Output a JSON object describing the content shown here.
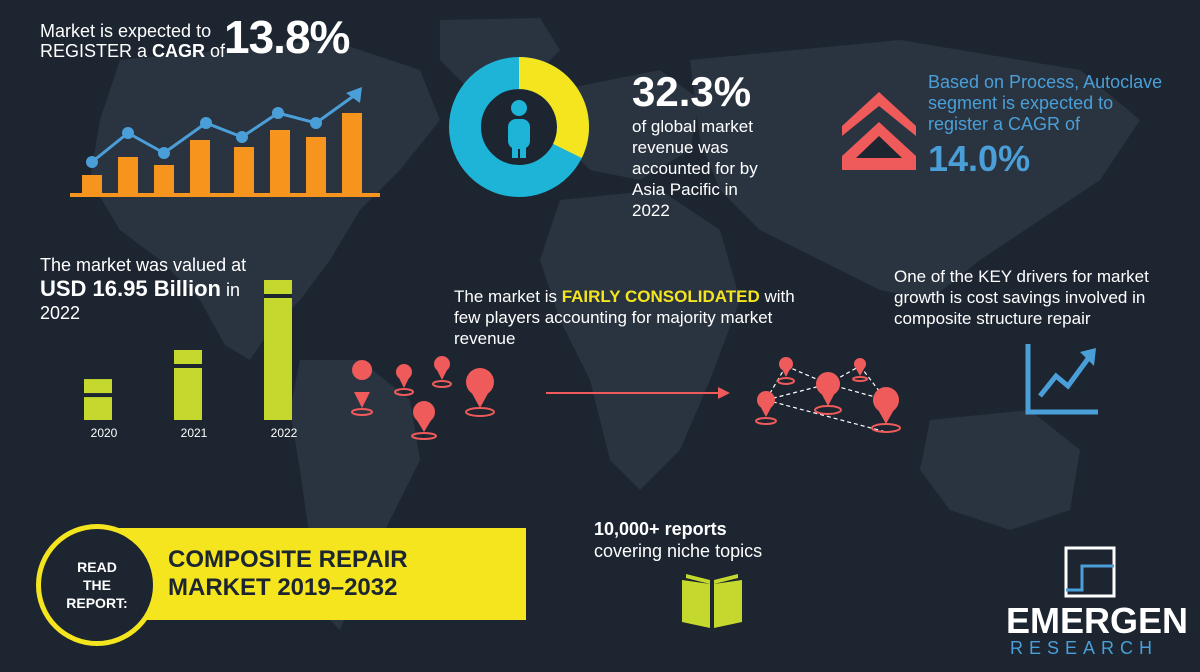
{
  "cagr": {
    "line1": "Market is expected to",
    "line2_prefix": "REGISTER a ",
    "line2_bold": "CAGR",
    "line2_suffix": " of",
    "value": "13.8%"
  },
  "share": {
    "value": "32.3%",
    "lines": [
      "of global market",
      "revenue was",
      "accounted for by",
      "Asia Pacific in",
      "2022"
    ],
    "fraction": 0.323
  },
  "process": {
    "lines": [
      "Based on Process, Autoclave",
      "segment is expected to",
      "register a CAGR of"
    ],
    "value": "14.0%"
  },
  "valuation": {
    "line1": "The market was valued at",
    "value_bold": "USD 16.95 Billion",
    "value_suffix": " in",
    "year": "2022"
  },
  "chart_data": {
    "type": "bar",
    "categories": [
      "2020",
      "2021",
      "2022"
    ],
    "values": [
      38,
      65,
      130
    ],
    "title": "",
    "xlabel": "",
    "ylabel": ""
  },
  "consolidated": {
    "prefix": "The market is ",
    "highlight": "FAIRLY CONSOLIDATED",
    "suffix": " with",
    "line2": "few players accounting for majority market",
    "line3": "revenue"
  },
  "drivers": {
    "lines": [
      "One of the KEY drivers for market",
      "growth is cost savings involved in",
      "composite structure repair"
    ]
  },
  "reports": {
    "line1": "10,000+ reports",
    "line2": "covering niche topics"
  },
  "cta": {
    "circle": [
      "READ",
      "THE",
      "REPORT:"
    ],
    "title_line1": "COMPOSITE REPAIR",
    "title_line2": "MARKET 2019–2032"
  },
  "logo": {
    "name": "EMERGEN",
    "sub": "RESEARCH"
  },
  "colors": {
    "background": "#1c2530",
    "map": "#2a3440",
    "orange": "#f7941d",
    "blue": "#4a9fd8",
    "cyan": "#1eb4d8",
    "yellow": "#f4e51e",
    "lime": "#c4d82e",
    "red": "#ef5a5a"
  }
}
